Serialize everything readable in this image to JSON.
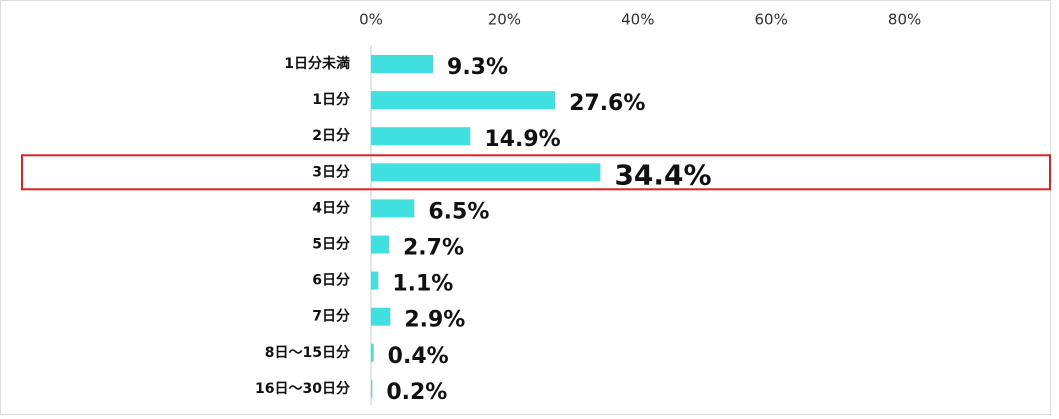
{
  "chart_data": {
    "type": "hbar",
    "categories": [
      "1日分未満",
      "1日分",
      "2日分",
      "3日分",
      "4日分",
      "5日分",
      "6日分",
      "7日分",
      "8日～15日分",
      "16日～30日分"
    ],
    "values": [
      9.3,
      27.6,
      14.9,
      34.4,
      6.5,
      2.7,
      1.1,
      2.9,
      0.4,
      0.2
    ],
    "value_labels": [
      "9.3%",
      "27.6%",
      "14.9%",
      "34.4%",
      "6.5%",
      "2.7%",
      "1.1%",
      "2.9%",
      "0.4%",
      "0.2%"
    ],
    "color": "#40e0e0",
    "xlim": [
      0,
      100
    ],
    "xticks": [
      {
        "value": 0,
        "label": "0%"
      },
      {
        "value": 20,
        "label": "20%"
      },
      {
        "value": 40,
        "label": "40%"
      },
      {
        "value": 60,
        "label": "60%"
      },
      {
        "value": 80,
        "label": "80%"
      }
    ],
    "highlight_index": 3,
    "highlight_color": "#e02020"
  }
}
